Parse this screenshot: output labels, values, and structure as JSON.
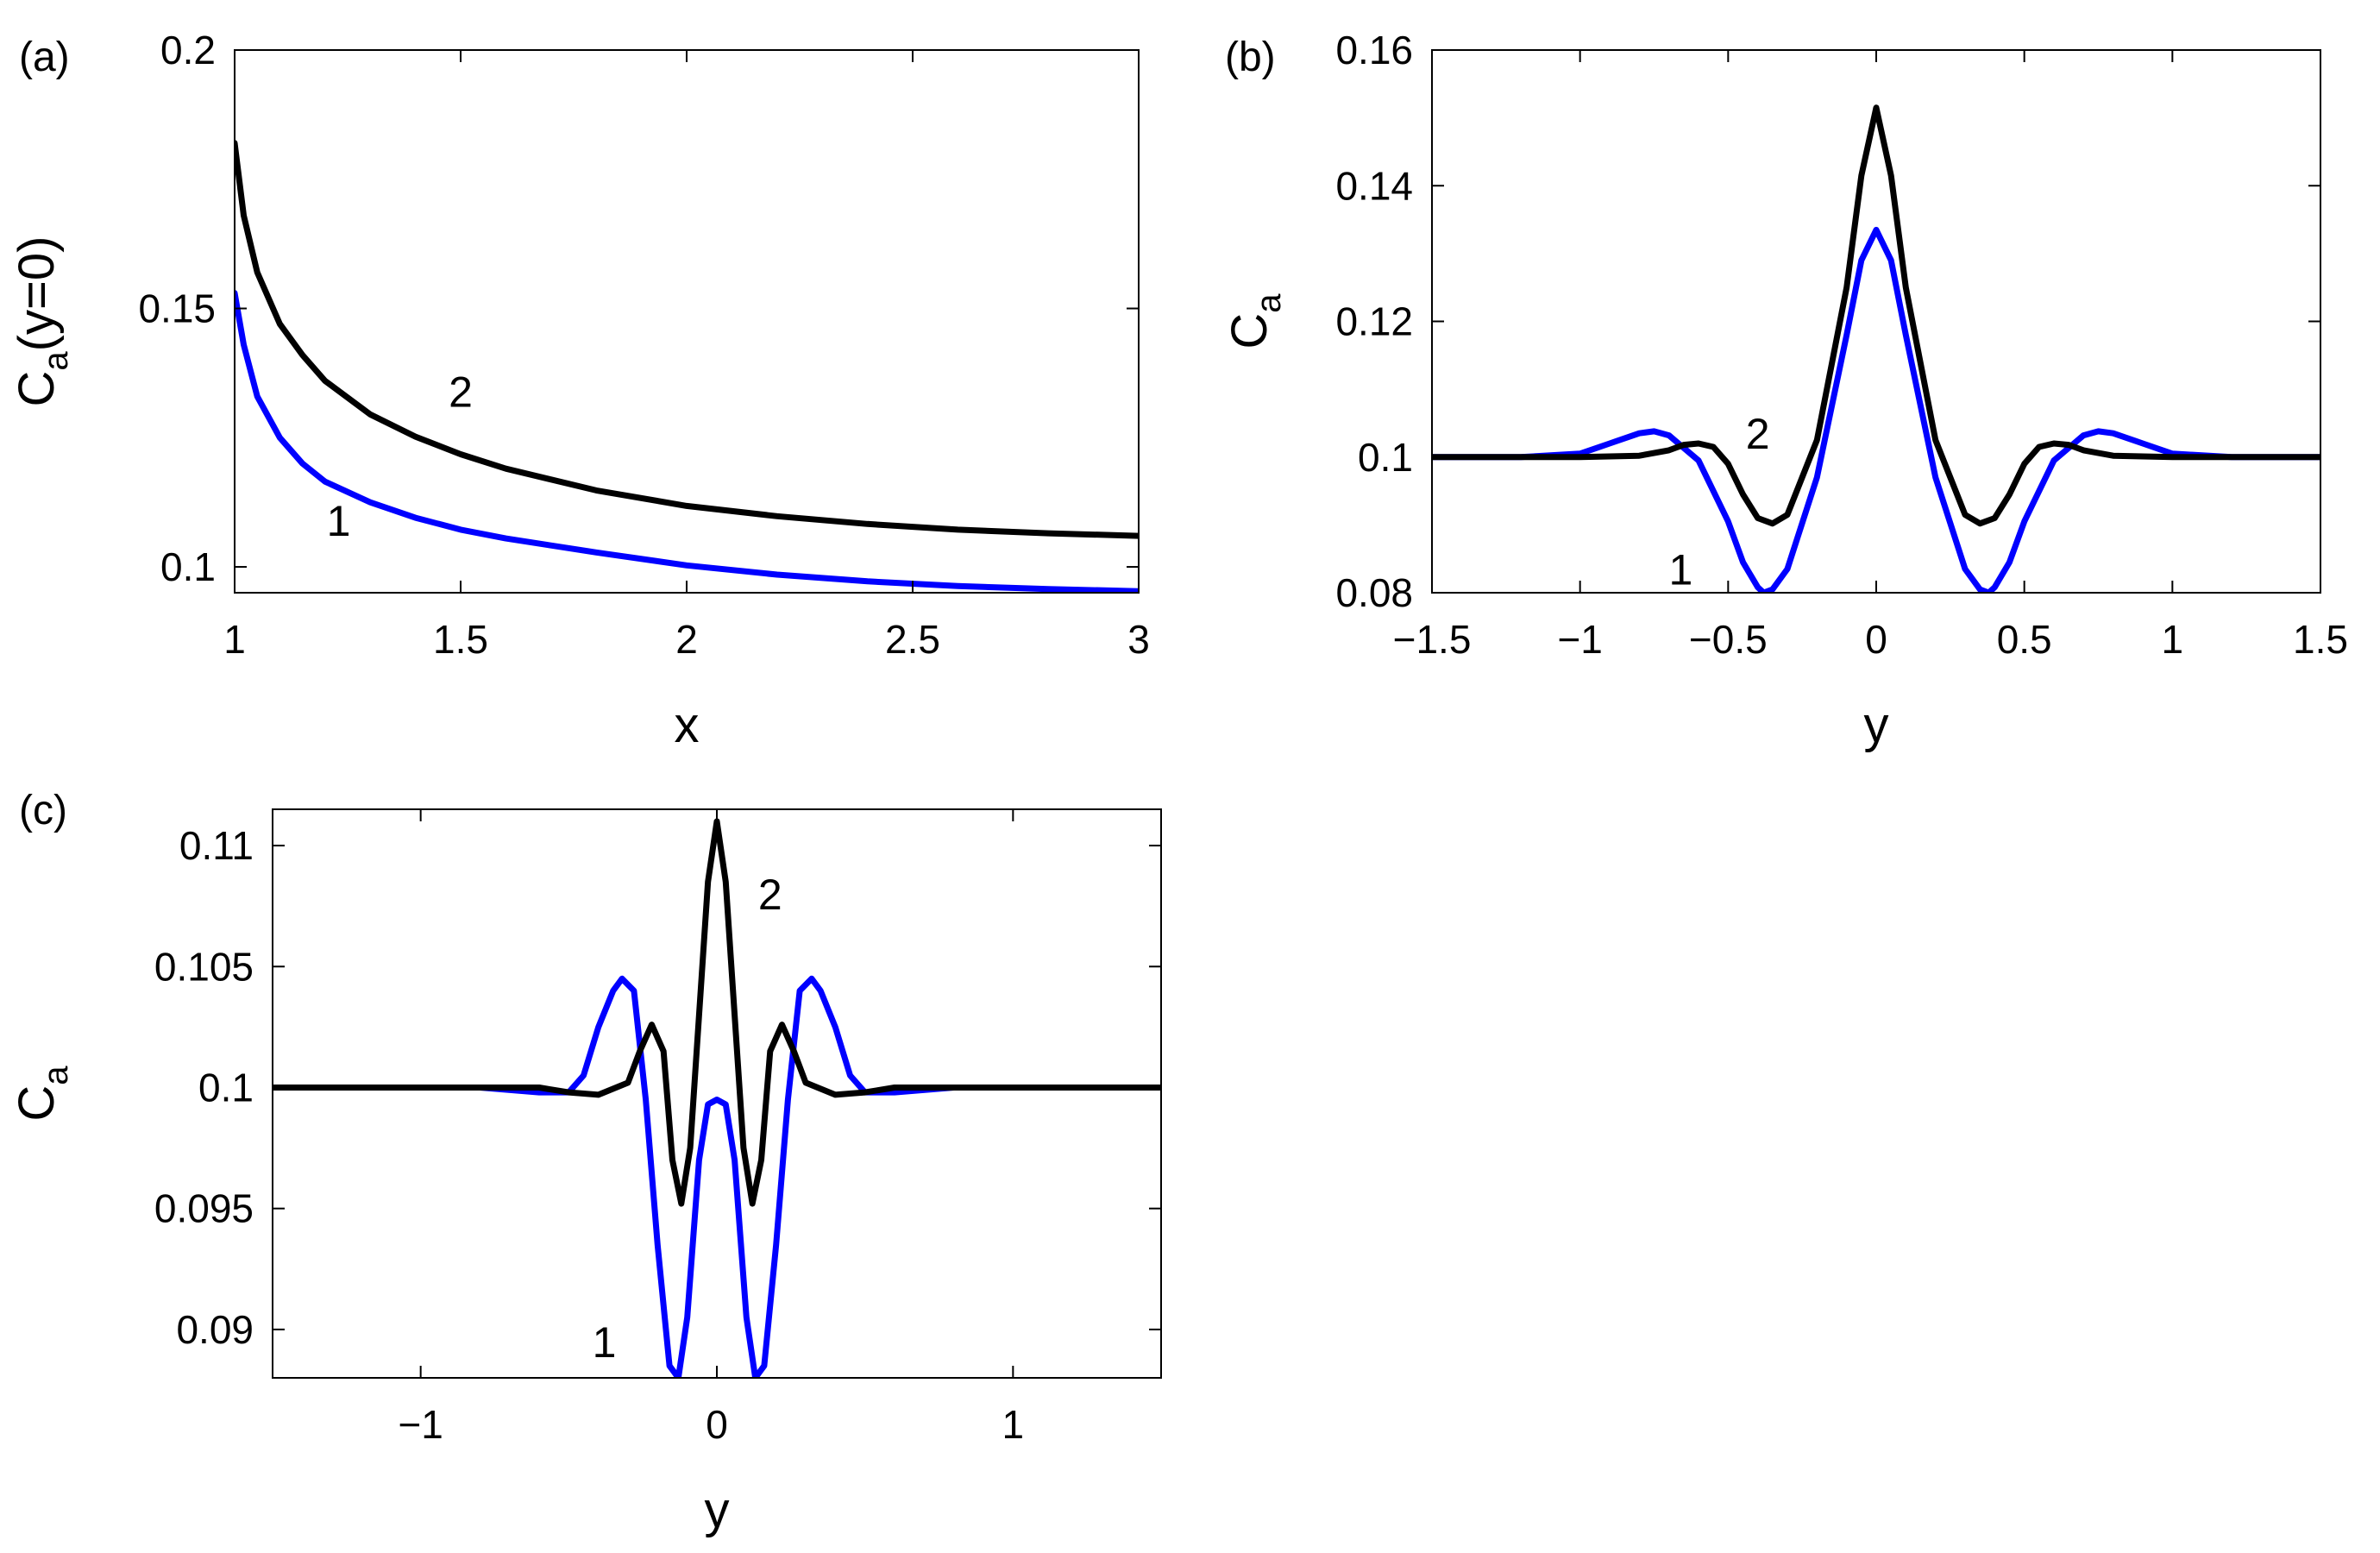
{
  "chart_data": [
    {
      "type": "line",
      "panel_label": "(a)",
      "xlabel": "x",
      "ylabel_main": "C",
      "ylabel_sub": "a",
      "ylabel_suffix": "(y=0)",
      "xlim": [
        1,
        3
      ],
      "ylim": [
        0.095,
        0.2
      ],
      "xticks": [
        1,
        1.5,
        2,
        2.5,
        3
      ],
      "xtick_labels": [
        "1",
        "1.5",
        "2",
        "2.5",
        "3"
      ],
      "yticks": [
        0.1,
        0.15,
        0.2
      ],
      "ytick_labels": [
        "0.1",
        "0.15",
        "0.2"
      ],
      "series": [
        {
          "curve_label": "1",
          "color": "#0000ff",
          "label_pos": [
            1.23,
            0.109
          ],
          "x": [
            1.0,
            1.02,
            1.05,
            1.1,
            1.15,
            1.2,
            1.3,
            1.4,
            1.5,
            1.6,
            1.8,
            2.0,
            2.2,
            2.4,
            2.6,
            2.8,
            3.0
          ],
          "y": [
            0.153,
            0.143,
            0.133,
            0.125,
            0.12,
            0.1165,
            0.1125,
            0.1095,
            0.1072,
            0.1055,
            0.1028,
            0.1003,
            0.0985,
            0.0972,
            0.0963,
            0.0957,
            0.0953
          ]
        },
        {
          "curve_label": "2",
          "color": "#000000",
          "label_pos": [
            1.5,
            0.134
          ],
          "x": [
            1.0,
            1.02,
            1.05,
            1.1,
            1.15,
            1.2,
            1.3,
            1.4,
            1.5,
            1.6,
            1.8,
            2.0,
            2.2,
            2.4,
            2.6,
            2.8,
            3.0
          ],
          "y": [
            0.182,
            0.168,
            0.157,
            0.147,
            0.141,
            0.136,
            0.1295,
            0.1252,
            0.1218,
            0.119,
            0.1148,
            0.1118,
            0.1098,
            0.1083,
            0.1072,
            0.1065,
            0.106
          ]
        }
      ]
    },
    {
      "type": "line",
      "panel_label": "(b)",
      "xlabel": "y",
      "ylabel_main": "C",
      "ylabel_sub": "a",
      "ylabel_suffix": "",
      "xlim": [
        -1.5,
        1.5
      ],
      "ylim": [
        0.08,
        0.16
      ],
      "xticks": [
        -1.5,
        -1,
        -0.5,
        0,
        0.5,
        1,
        1.5
      ],
      "xtick_labels": [
        "−1.5",
        "−1",
        "−0.5",
        "0",
        "0.5",
        "1",
        "1.5"
      ],
      "yticks": [
        0.08,
        0.1,
        0.12,
        0.14,
        0.16
      ],
      "ytick_labels": [
        "0.08",
        "0.1",
        "0.12",
        "0.14",
        "0.16"
      ],
      "series": [
        {
          "curve_label": "1",
          "color": "#0000ff",
          "label_pos": [
            -0.66,
            0.0835
          ],
          "x": [
            -1.5,
            -1.2,
            -1.0,
            -0.9,
            -0.8,
            -0.75,
            -0.7,
            -0.6,
            -0.5,
            -0.45,
            -0.4,
            -0.38,
            -0.35,
            -0.3,
            -0.2,
            -0.1,
            -0.05,
            0,
            0.05,
            0.1,
            0.2,
            0.3,
            0.35,
            0.38,
            0.4,
            0.45,
            0.5,
            0.6,
            0.7,
            0.75,
            0.8,
            0.9,
            1.0,
            1.2,
            1.5
          ],
          "y": [
            0.1,
            0.1,
            0.1005,
            0.102,
            0.1035,
            0.1038,
            0.1032,
            0.0995,
            0.0905,
            0.0845,
            0.0808,
            0.08,
            0.0805,
            0.0835,
            0.097,
            0.118,
            0.129,
            0.1335,
            0.129,
            0.118,
            0.097,
            0.0835,
            0.0805,
            0.08,
            0.0808,
            0.0845,
            0.0905,
            0.0995,
            0.1032,
            0.1038,
            0.1035,
            0.102,
            0.1005,
            0.1,
            0.1
          ]
        },
        {
          "curve_label": "2",
          "color": "#000000",
          "label_pos": [
            -0.4,
            0.1035
          ],
          "x": [
            -1.5,
            -1.0,
            -0.8,
            -0.7,
            -0.65,
            -0.6,
            -0.55,
            -0.5,
            -0.45,
            -0.4,
            -0.35,
            -0.3,
            -0.2,
            -0.1,
            -0.05,
            0,
            0.05,
            0.1,
            0.2,
            0.3,
            0.35,
            0.4,
            0.45,
            0.5,
            0.55,
            0.6,
            0.65,
            0.7,
            0.8,
            1.0,
            1.5
          ],
          "y": [
            0.1,
            0.1,
            0.1002,
            0.101,
            0.1018,
            0.102,
            0.1015,
            0.099,
            0.0945,
            0.091,
            0.0902,
            0.0915,
            0.1025,
            0.125,
            0.1415,
            0.1515,
            0.1415,
            0.125,
            0.1025,
            0.0915,
            0.0902,
            0.091,
            0.0945,
            0.099,
            0.1015,
            0.102,
            0.1018,
            0.101,
            0.1002,
            0.1,
            0.1
          ]
        }
      ]
    },
    {
      "type": "line",
      "panel_label": "(c)",
      "xlabel": "y",
      "ylabel_main": "C",
      "ylabel_sub": "a",
      "ylabel_suffix": "",
      "xlim": [
        -1.5,
        1.5
      ],
      "ylim": [
        0.088,
        0.1115
      ],
      "xticks": [
        -1,
        0,
        1
      ],
      "xtick_labels": [
        "−1",
        "0",
        "1"
      ],
      "yticks": [
        0.09,
        0.095,
        0.1,
        0.105,
        0.11
      ],
      "ytick_labels": [
        "0.09",
        "0.095",
        "0.1",
        "0.105",
        "0.11"
      ],
      "series": [
        {
          "curve_label": "1",
          "color": "#0000ff",
          "label_pos": [
            -0.38,
            0.0895
          ],
          "x": [
            -1.5,
            -0.8,
            -0.6,
            -0.5,
            -0.45,
            -0.4,
            -0.35,
            -0.32,
            -0.28,
            -0.24,
            -0.2,
            -0.16,
            -0.13,
            -0.1,
            -0.06,
            -0.03,
            0,
            0.03,
            0.06,
            0.1,
            0.13,
            0.16,
            0.2,
            0.24,
            0.28,
            0.32,
            0.35,
            0.4,
            0.45,
            0.5,
            0.6,
            0.8,
            1.5
          ],
          "y": [
            0.1,
            0.1,
            0.0998,
            0.0998,
            0.1005,
            0.1025,
            0.104,
            0.1045,
            0.104,
            0.0995,
            0.0935,
            0.0885,
            0.088,
            0.0905,
            0.097,
            0.0993,
            0.0995,
            0.0993,
            0.097,
            0.0905,
            0.088,
            0.0885,
            0.0935,
            0.0995,
            0.104,
            0.1045,
            0.104,
            0.1025,
            0.1005,
            0.0998,
            0.0998,
            0.1,
            0.1
          ]
        },
        {
          "curve_label": "2",
          "color": "#000000",
          "label_pos": [
            0.18,
            0.108
          ],
          "x": [
            -1.5,
            -0.6,
            -0.5,
            -0.4,
            -0.3,
            -0.26,
            -0.22,
            -0.18,
            -0.15,
            -0.12,
            -0.09,
            -0.06,
            -0.03,
            0,
            0.03,
            0.06,
            0.09,
            0.12,
            0.15,
            0.18,
            0.22,
            0.26,
            0.3,
            0.4,
            0.5,
            0.6,
            1.5
          ],
          "y": [
            0.1,
            0.1,
            0.0998,
            0.0997,
            0.1002,
            0.1015,
            0.1026,
            0.1015,
            0.097,
            0.0952,
            0.0975,
            0.103,
            0.1085,
            0.111,
            0.1085,
            0.103,
            0.0975,
            0.0952,
            0.097,
            0.1015,
            0.1026,
            0.1015,
            0.1002,
            0.0997,
            0.0998,
            0.1,
            0.1
          ]
        }
      ]
    }
  ]
}
